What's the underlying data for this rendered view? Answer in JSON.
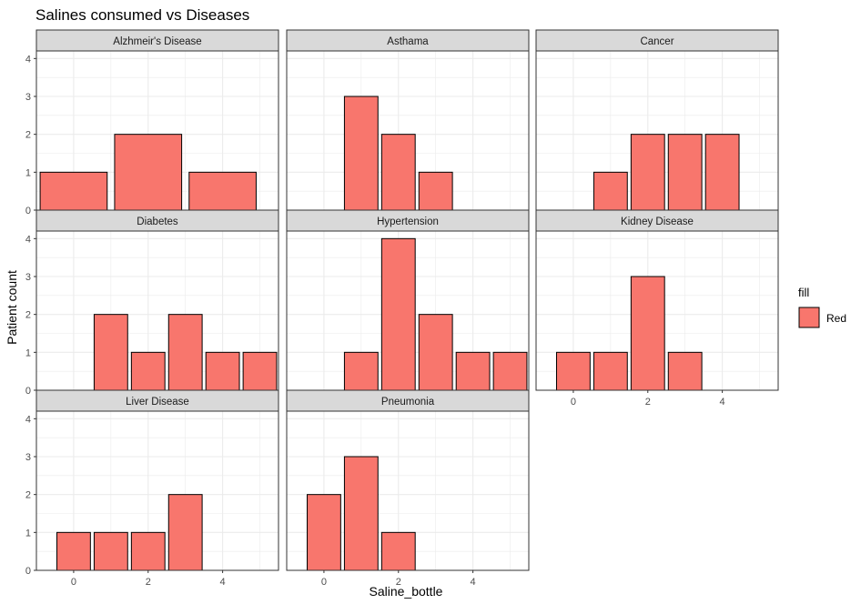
{
  "chart_data": {
    "type": "bar",
    "title": "Salines consumed vs Diseases",
    "xlabel": "Saline_bottle",
    "ylabel": "Patient count",
    "xlim": [
      -1,
      5.5
    ],
    "ylim": [
      0,
      4.2
    ],
    "x_ticks": [
      0,
      2,
      4
    ],
    "y_ticks": [
      0,
      1,
      2,
      3,
      4
    ],
    "grid": true,
    "facet_cols": 3,
    "bar_color": "#F8766D",
    "bar_outline": "#000000",
    "strip_fill": "#D9D9D9",
    "legend": {
      "title": "fill",
      "entries": [
        {
          "label": "Red",
          "color": "#F8766D"
        }
      ],
      "position": "right"
    },
    "panels": [
      {
        "name": "Alzhmeir's Disease",
        "binwidth": 1.8,
        "bars": [
          {
            "x": 0,
            "y": 1
          },
          {
            "x": 2,
            "y": 2
          },
          {
            "x": 4,
            "y": 1
          }
        ]
      },
      {
        "name": "Asthama",
        "binwidth": 0.9,
        "bars": [
          {
            "x": 1,
            "y": 3
          },
          {
            "x": 2,
            "y": 2
          },
          {
            "x": 3,
            "y": 1
          }
        ]
      },
      {
        "name": "Cancer",
        "binwidth": 0.9,
        "bars": [
          {
            "x": 1,
            "y": 1
          },
          {
            "x": 2,
            "y": 2
          },
          {
            "x": 3,
            "y": 2
          },
          {
            "x": 4,
            "y": 2
          }
        ]
      },
      {
        "name": "Diabetes",
        "binwidth": 0.9,
        "bars": [
          {
            "x": 1,
            "y": 2
          },
          {
            "x": 2,
            "y": 1
          },
          {
            "x": 3,
            "y": 2
          },
          {
            "x": 4,
            "y": 1
          },
          {
            "x": 5,
            "y": 1
          }
        ]
      },
      {
        "name": "Hypertension",
        "binwidth": 0.9,
        "bars": [
          {
            "x": 1,
            "y": 1
          },
          {
            "x": 2,
            "y": 4
          },
          {
            "x": 3,
            "y": 2
          },
          {
            "x": 4,
            "y": 1
          },
          {
            "x": 5,
            "y": 1
          }
        ]
      },
      {
        "name": "Kidney Disease",
        "binwidth": 0.9,
        "bars": [
          {
            "x": 0,
            "y": 1
          },
          {
            "x": 1,
            "y": 1
          },
          {
            "x": 2,
            "y": 3
          },
          {
            "x": 3,
            "y": 1
          }
        ]
      },
      {
        "name": "Liver Disease",
        "binwidth": 0.9,
        "bars": [
          {
            "x": 0,
            "y": 1
          },
          {
            "x": 1,
            "y": 1
          },
          {
            "x": 2,
            "y": 1
          },
          {
            "x": 3,
            "y": 2
          }
        ]
      },
      {
        "name": "Pneumonia",
        "binwidth": 0.9,
        "bars": [
          {
            "x": 0,
            "y": 2
          },
          {
            "x": 1,
            "y": 3
          },
          {
            "x": 2,
            "y": 1
          }
        ]
      }
    ]
  }
}
